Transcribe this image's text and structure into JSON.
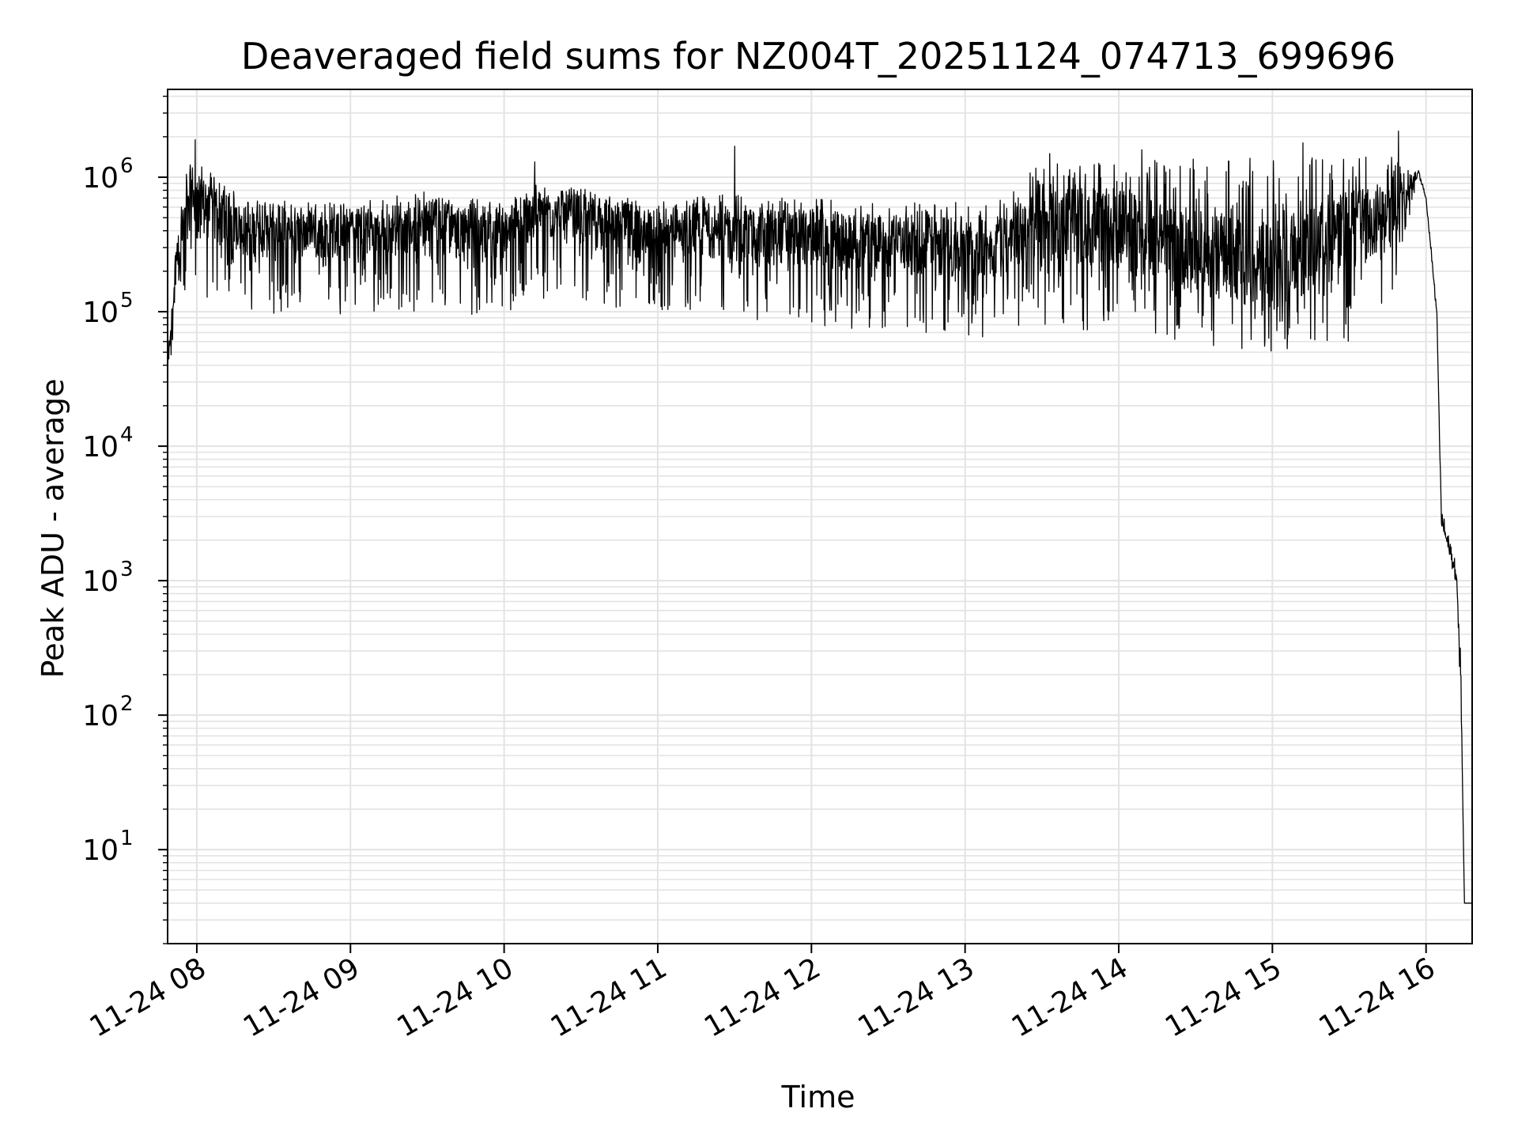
{
  "chart_data": {
    "type": "line",
    "title": "Deaveraged field sums for NZ004T_20251124_074713_699696",
    "xlabel": "Time",
    "ylabel": "Peak ADU - average",
    "yscale": "log",
    "grid": true,
    "line_color": "#000000",
    "grid_color": "#e3e3e3",
    "xlim_hours": [
      7.81,
      16.3
    ],
    "ylim": [
      2,
      4500000
    ],
    "x_ticks": [
      {
        "hour": 8,
        "label": "11-24 08"
      },
      {
        "hour": 9,
        "label": "11-24 09"
      },
      {
        "hour": 10,
        "label": "11-24 10"
      },
      {
        "hour": 11,
        "label": "11-24 11"
      },
      {
        "hour": 12,
        "label": "11-24 12"
      },
      {
        "hour": 13,
        "label": "11-24 13"
      },
      {
        "hour": 14,
        "label": "11-24 14"
      },
      {
        "hour": 15,
        "label": "11-24 15"
      },
      {
        "hour": 16,
        "label": "11-24 16"
      }
    ],
    "y_ticks": [
      {
        "value": 10,
        "base": "10",
        "exp": "1"
      },
      {
        "value": 100,
        "base": "10",
        "exp": "2"
      },
      {
        "value": 1000,
        "base": "10",
        "exp": "3"
      },
      {
        "value": 10000,
        "base": "10",
        "exp": "4"
      },
      {
        "value": 100000,
        "base": "10",
        "exp": "5"
      },
      {
        "value": 1000000,
        "base": "10",
        "exp": "6"
      }
    ],
    "series": [
      {
        "name": "Peak ADU - average",
        "description": "Noisy signal: ~3e4 at 07:48 rising to ~1e6 by 08:00, fluctuating between ~6e4 and ~1.5e6 (range widens after 13:20), peak ~2.2e6 near 15:50, smooth hump ~1.1e6 at 15:55, steep drop to ~3e3 at 16:07, ~1e3 at 16:13, then ~4 after 16:15.",
        "envelope_hours": [
          7.81,
          7.86,
          7.93,
          8.0,
          8.3,
          9.0,
          9.5,
          10.0,
          10.2,
          11.0,
          11.5,
          12.0,
          12.5,
          13.0,
          13.3,
          13.5,
          14.0,
          14.5,
          15.0,
          15.5,
          15.8,
          15.95,
          16.0,
          16.07,
          16.1,
          16.15,
          16.2,
          16.23,
          16.25,
          16.3
        ],
        "envelope_values": [
          30000,
          200000,
          450000,
          600000,
          400000,
          380000,
          450000,
          380000,
          550000,
          380000,
          380000,
          350000,
          320000,
          300000,
          320000,
          500000,
          400000,
          280000,
          220000,
          400000,
          500000,
          1100000,
          700000,
          100000,
          3000,
          1800,
          1000,
          100,
          4,
          4
        ],
        "upper_band_values": [
          40000,
          450000,
          1200000,
          1300000,
          700000,
          650000,
          800000,
          650000,
          900000,
          700000,
          750000,
          700000,
          650000,
          650000,
          800000,
          1400000,
          1300000,
          1400000,
          1400000,
          1500000,
          1500000,
          1150000,
          750000,
          110000,
          3500,
          2200,
          1300,
          200,
          4,
          4
        ],
        "lower_band_values": [
          25000,
          90000,
          90000,
          120000,
          100000,
          90000,
          100000,
          90000,
          120000,
          100000,
          90000,
          80000,
          70000,
          60000,
          70000,
          80000,
          60000,
          55000,
          50000,
          60000,
          150000,
          1000000,
          650000,
          90000,
          2500,
          1500,
          900,
          50,
          4,
          4
        ],
        "spikes": [
          {
            "hour": 7.99,
            "value": 1900000
          },
          {
            "hour": 10.2,
            "value": 1300000
          },
          {
            "hour": 11.5,
            "value": 1700000
          },
          {
            "hour": 13.55,
            "value": 1500000
          },
          {
            "hour": 14.15,
            "value": 1600000
          },
          {
            "hour": 15.2,
            "value": 1800000
          },
          {
            "hour": 15.82,
            "value": 2200000
          }
        ]
      }
    ]
  }
}
